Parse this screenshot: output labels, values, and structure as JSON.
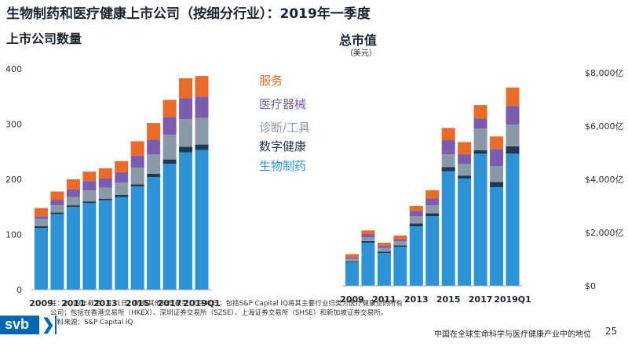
{
  "title": "生物制药和医疗健康上市公司（按细分行业）：2019年一季度",
  "footer": {
    "note": "注：2019年截至3月31日；所有其他年度截至12月31日；包括S&P Capital IQ将其主要行业归类为医疗健康业的所有公司；包括在香港交易所（HKEX）、深圳证券交易所（SZSE）、上海证券交易所（SHSE）和新加坡证券交易所。",
    "source": "资料来源：S&P Capital IQ",
    "caption": "中国在全球生命科学与医疗健康产业中的地位",
    "page": "25",
    "logo_text": "svb",
    "logo_glyph": "❯"
  },
  "colors": {
    "生物制药": "#2e93d6",
    "数字健康": "#1c3a55",
    "诊断/工具": "#8a99a8",
    "医疗器械": "#7b5cae",
    "服务": "#ea6a2c"
  },
  "chart_data": [
    {
      "type": "bar",
      "stacked": true,
      "title": "上市公司数量",
      "categories": [
        "2009",
        "2010",
        "2011",
        "2012",
        "2013",
        "2014",
        "2015",
        "2016",
        "2017",
        "2018",
        "2019Q1"
      ],
      "tick_labels": [
        "2009",
        "",
        "2011",
        "",
        "2013",
        "",
        "2015",
        "",
        "2017",
        "",
        "2019Q1"
      ],
      "series": [
        {
          "name": "生物制药",
          "values": [
            112,
            137,
            150,
            157,
            162,
            168,
            187,
            204,
            228,
            249,
            253
          ]
        },
        {
          "name": "数字健康",
          "values": [
            3,
            3,
            3,
            3,
            3,
            4,
            4,
            6,
            8,
            10,
            10
          ]
        },
        {
          "name": "诊断/工具",
          "values": [
            13,
            13,
            15,
            20,
            20,
            22,
            30,
            35,
            45,
            50,
            48
          ]
        },
        {
          "name": "医疗器械",
          "values": [
            5,
            10,
            14,
            17,
            17,
            19,
            22,
            27,
            32,
            38,
            39
          ]
        },
        {
          "name": "服务",
          "values": [
            15,
            15,
            18,
            17,
            18,
            20,
            26,
            30,
            31,
            36,
            37
          ]
        }
      ],
      "legend_order": [
        "服务",
        "医疗器械",
        "诊断/工具",
        "数字健康",
        "生物制药"
      ],
      "ylim": [
        0,
        400
      ],
      "yticks": [
        0,
        100,
        200,
        300,
        400
      ],
      "ytick_labels": [
        "0",
        "100",
        "200",
        "300",
        "400"
      ],
      "xlabel": "",
      "ylabel": ""
    },
    {
      "type": "bar",
      "stacked": true,
      "title": "总市值",
      "unit": "（美元）",
      "categories": [
        "2009",
        "2010",
        "2011",
        "2012",
        "2013",
        "2014",
        "2015",
        "2016",
        "2017",
        "2018",
        "2019Q1"
      ],
      "tick_labels": [
        "2009",
        "",
        "2011",
        "",
        "2013",
        "",
        "2015",
        "",
        "2017",
        "",
        "2019Q1"
      ],
      "series": [
        {
          "name": "生物制药",
          "values": [
            880,
            1620,
            1230,
            1470,
            2230,
            2610,
            4300,
            4030,
            4960,
            3700,
            4960
          ]
        },
        {
          "name": "数字健康",
          "values": [
            30,
            60,
            50,
            50,
            110,
            110,
            160,
            110,
            130,
            200,
            280
          ]
        },
        {
          "name": "诊断/工具",
          "values": [
            100,
            140,
            140,
            150,
            270,
            300,
            480,
            430,
            820,
            600,
            810
          ]
        },
        {
          "name": "医疗器械",
          "values": [
            70,
            120,
            90,
            90,
            210,
            260,
            530,
            370,
            370,
            640,
            710
          ]
        },
        {
          "name": "服务",
          "values": [
            110,
            140,
            110,
            130,
            180,
            310,
            460,
            460,
            510,
            470,
            690
          ]
        }
      ],
      "ylim": [
        0,
        8000
      ],
      "yticks": [
        0,
        2000,
        4000,
        6000,
        8000
      ],
      "ytick_labels": [
        "$0",
        "$2,000亿",
        "$4,000亿",
        "$6,000亿",
        "$8,000亿"
      ],
      "xlabel": "",
      "ylabel": ""
    }
  ]
}
